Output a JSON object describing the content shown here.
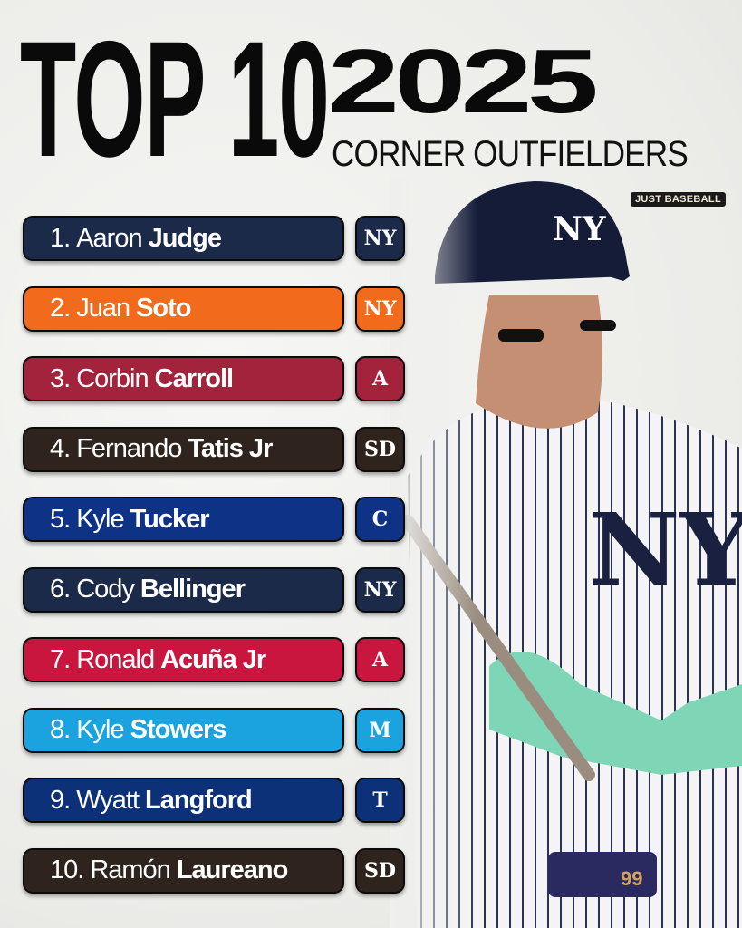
{
  "header": {
    "title": "TOP 10",
    "year": "2025",
    "subtitle": "CORNER OUTFIELDERS"
  },
  "brand": "JUST BASEBALL",
  "players": [
    {
      "rank": "1.",
      "first": "Aaron",
      "last": "Judge",
      "team_logo": "NY",
      "logo_icon": "yankees-logo-icon",
      "color": "#1c2a4a"
    },
    {
      "rank": "2.",
      "first": "Juan",
      "last": "Soto",
      "team_logo": "NY",
      "logo_icon": "mets-logo-icon",
      "color": "#f26b1d"
    },
    {
      "rank": "3.",
      "first": "Corbin",
      "last": "Carroll",
      "team_logo": "A",
      "logo_icon": "diamondbacks-logo-icon",
      "color": "#a3223c"
    },
    {
      "rank": "4.",
      "first": "Fernando",
      "last": "Tatis Jr",
      "team_logo": "SD",
      "logo_icon": "padres-logo-icon",
      "color": "#2f241d"
    },
    {
      "rank": "5.",
      "first": "Kyle",
      "last": "Tucker",
      "team_logo": "C",
      "logo_icon": "cubs-logo-icon",
      "color": "#0e3386"
    },
    {
      "rank": "6.",
      "first": "Cody",
      "last": "Bellinger",
      "team_logo": "NY",
      "logo_icon": "yankees-logo-icon",
      "color": "#1c2a4a"
    },
    {
      "rank": "7.",
      "first": "Ronald",
      "last": "Acuña Jr",
      "team_logo": "A",
      "logo_icon": "braves-logo-icon",
      "color": "#c8163f"
    },
    {
      "rank": "8.",
      "first": "Kyle",
      "last": "Stowers",
      "team_logo": "M",
      "logo_icon": "marlins-logo-icon",
      "color": "#1aa3de"
    },
    {
      "rank": "9.",
      "first": "Wyatt",
      "last": "Langford",
      "team_logo": "T",
      "logo_icon": "rangers-logo-icon",
      "color": "#0d3178"
    },
    {
      "rank": "10.",
      "first": "Ramón",
      "last": "Laureano",
      "team_logo": "SD",
      "logo_icon": "padres-logo-icon",
      "color": "#2f241d"
    }
  ]
}
